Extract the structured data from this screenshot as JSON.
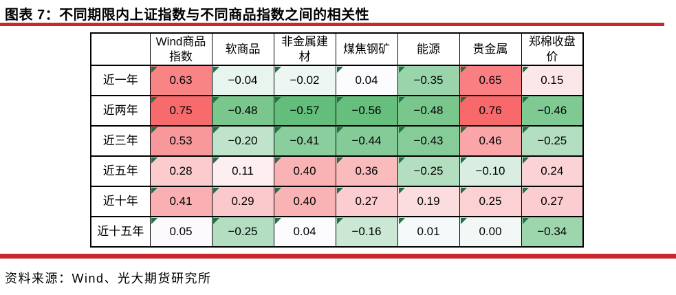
{
  "page": {
    "title": "图表 7：不同期限内上证指数与不同商品指数之间的相关性",
    "source": "资料来源：Wind、光大期货研究所"
  },
  "colors": {
    "rule_red": "#C9282E",
    "table_border": "#000000",
    "corner_flag_green": "#1F7244",
    "scale_max_red": "#F8696B",
    "scale_mid_white": "#FCFCFF",
    "scale_min_green": "#63BE7B"
  },
  "chart_data": {
    "type": "heatmap",
    "title": "不同期限内上证指数与不同商品指数之间的相关性",
    "columns": [
      "Wind商品指数",
      "软商品",
      "非金属建材",
      "煤焦钢矿",
      "能源",
      "贵金属",
      "郑棉收盘价"
    ],
    "rows": [
      "近一年",
      "近两年",
      "近三年",
      "近五年",
      "近十年",
      "近十五年"
    ],
    "values": [
      [
        0.63,
        -0.04,
        -0.02,
        0.04,
        -0.35,
        0.65,
        0.15
      ],
      [
        0.75,
        -0.48,
        -0.57,
        -0.56,
        -0.48,
        0.76,
        -0.46
      ],
      [
        0.53,
        -0.2,
        -0.41,
        -0.44,
        -0.43,
        0.46,
        -0.25
      ],
      [
        0.28,
        0.11,
        0.4,
        0.36,
        -0.25,
        -0.1,
        0.24
      ],
      [
        0.41,
        0.29,
        0.4,
        0.27,
        0.19,
        0.25,
        0.27
      ],
      [
        0.05,
        -0.25,
        0.04,
        -0.16,
        0.01,
        0.0,
        -0.34
      ]
    ],
    "color_scale": {
      "min": {
        "value": -0.57,
        "color": "#63BE7B"
      },
      "mid": {
        "value": 0.04,
        "color": "#FCFCFF"
      },
      "max": {
        "value": 0.76,
        "color": "#F8696B"
      }
    },
    "legend_position": "none",
    "grid": true
  }
}
